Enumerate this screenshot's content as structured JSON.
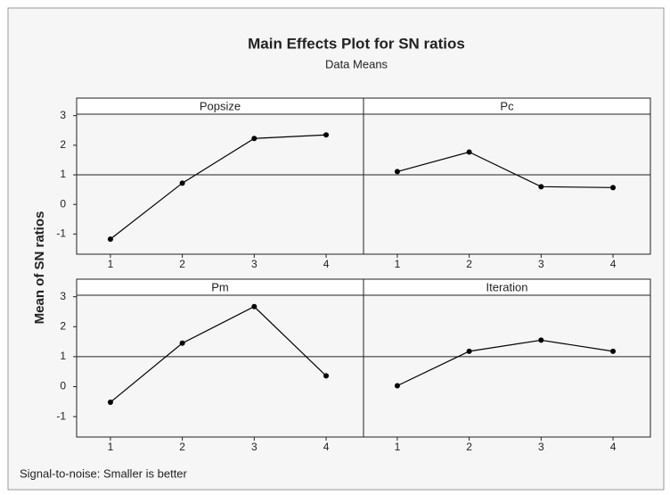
{
  "title": "Main Effects Plot for SN ratios",
  "subtitle": "Data Means",
  "ylabel": "Mean of SN ratios",
  "footnote": "Signal-to-noise: Smaller is better",
  "chart_data": [
    {
      "type": "line",
      "title": "Popsize",
      "x": [
        1,
        2,
        3,
        4
      ],
      "values": [
        -1.17,
        0.72,
        2.23,
        2.35
      ],
      "color": "#000000",
      "xlim": [
        0.53,
        4.52
      ],
      "xticks": [
        1,
        2,
        3,
        4
      ],
      "ylim": [
        -1.68,
        3.05
      ],
      "yticks": [
        -1,
        0,
        1,
        2,
        3
      ],
      "reference_line": 1.0
    },
    {
      "type": "line",
      "title": "Pc",
      "x": [
        1,
        2,
        3,
        4
      ],
      "values": [
        1.11,
        1.77,
        0.6,
        0.57
      ],
      "color": "#000000",
      "xlim": [
        0.53,
        4.52
      ],
      "xticks": [
        1,
        2,
        3,
        4
      ],
      "ylim": [
        -1.68,
        3.05
      ],
      "reference_line": 1.0
    },
    {
      "type": "line",
      "title": "Pm",
      "x": [
        1,
        2,
        3,
        4
      ],
      "values": [
        -0.52,
        1.45,
        2.67,
        0.36
      ],
      "color": "#000000",
      "xlim": [
        0.53,
        4.52
      ],
      "xticks": [
        1,
        2,
        3,
        4
      ],
      "ylim": [
        -1.68,
        3.05
      ],
      "yticks": [
        -1,
        0,
        1,
        2,
        3
      ],
      "reference_line": 1.0
    },
    {
      "type": "line",
      "title": "Iteration",
      "x": [
        1,
        2,
        3,
        4
      ],
      "values": [
        0.03,
        1.18,
        1.55,
        1.18
      ],
      "color": "#000000",
      "xlim": [
        0.53,
        4.52
      ],
      "xticks": [
        1,
        2,
        3,
        4
      ],
      "ylim": [
        -1.68,
        3.05
      ],
      "reference_line": 1.0
    }
  ]
}
